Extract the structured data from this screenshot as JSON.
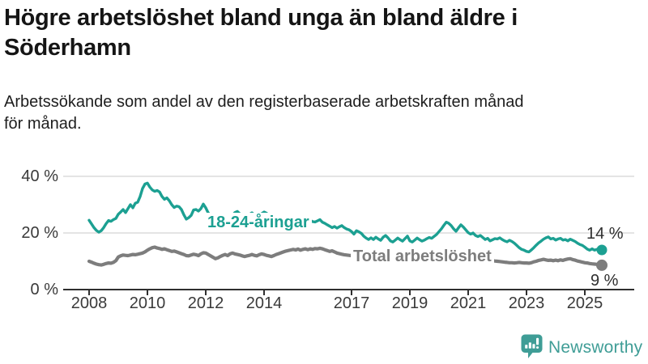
{
  "header": {
    "title": "Högre arbetslöshet bland unga än bland äldre i Söderhamn",
    "subtitle": "Arbetssökande som andel av den registerbaserade arbetskraften månad för månad."
  },
  "colors": {
    "accent_teal": "#1CA092",
    "line_gray": "#7D7D7D",
    "grid": "#DCDCDC",
    "axis": "#2F2F2F",
    "tick_text": "#3a3a3a",
    "logo_teal": "#3F9D96"
  },
  "chart_data": {
    "type": "line",
    "title": "",
    "xlabel": "",
    "ylabel": "",
    "unit": "%",
    "grid": "horizontal",
    "start_year": 2008,
    "points_per_year": 12,
    "x_range": [
      2008,
      2025.67
    ],
    "ylim": [
      0,
      42
    ],
    "x_ticks": [
      2008,
      2010,
      2012,
      2014,
      2017,
      2019,
      2021,
      2023,
      2025
    ],
    "y_ticks": [
      {
        "value": 0,
        "label": "0 %"
      },
      {
        "value": 20,
        "label": "20 %"
      },
      {
        "value": 40,
        "label": "40 %"
      }
    ],
    "series": [
      {
        "name": "18-24-åringar",
        "label": "18-24-åringar",
        "end_label": "14 %",
        "end_value": 14,
        "color": "#1CA092",
        "values": [
          24.5,
          23.2,
          21.9,
          20.9,
          20.3,
          20.8,
          21.9,
          23.3,
          24.4,
          24.1,
          24.7,
          25.1,
          26.6,
          27.4,
          28.3,
          27.2,
          28.6,
          30.0,
          28.9,
          30.5,
          30.9,
          32.9,
          35.7,
          37.3,
          37.6,
          36.2,
          35.2,
          34.7,
          35.0,
          34.5,
          32.9,
          31.9,
          32.4,
          31.4,
          30.0,
          29.0,
          29.5,
          29.3,
          28.3,
          26.4,
          24.9,
          25.4,
          26.2,
          28.1,
          28.3,
          27.7,
          28.6,
          30.2,
          28.9,
          27.1,
          26.2,
          25.4,
          24.8,
          24.3,
          25.0,
          25.8,
          25.3,
          24.8,
          25.4,
          26.3,
          27.2,
          27.6,
          26.8,
          26.1,
          25.4,
          25.9,
          26.6,
          27.1,
          26.4,
          25.8,
          26.2,
          26.8,
          27.4,
          27.0,
          26.3,
          25.6,
          25.1,
          25.5,
          26.1,
          25.8,
          25.2,
          24.7,
          25.1,
          25.6,
          26.0,
          25.6,
          25.0,
          24.4,
          24.0,
          24.3,
          24.8,
          24.5,
          24.0,
          23.9,
          24.3,
          24.7,
          23.8,
          23.4,
          22.9,
          22.4,
          21.9,
          22.3,
          21.7,
          22.2,
          22.6,
          21.9,
          21.4,
          21.1,
          20.5,
          19.6,
          20.8,
          20.4,
          19.9,
          18.9,
          18.2,
          17.7,
          18.3,
          17.7,
          18.5,
          17.9,
          17.4,
          18.5,
          19.1,
          18.3,
          17.2,
          16.8,
          17.5,
          18.2,
          17.6,
          17.1,
          18.0,
          18.9,
          17.2,
          16.8,
          17.5,
          18.2,
          17.6,
          17.1,
          17.5,
          18.0,
          18.4,
          18.1,
          18.8,
          19.5,
          20.5,
          21.5,
          22.7,
          23.8,
          23.4,
          22.6,
          21.5,
          20.6,
          21.8,
          22.9,
          22.1,
          21.1,
          20.1,
          19.6,
          20.0,
          19.1,
          18.7,
          19.1,
          18.4,
          17.7,
          18.1,
          17.2,
          17.6,
          18.0,
          17.9,
          18.3,
          17.7,
          17.2,
          16.9,
          17.4,
          17.0,
          16.4,
          15.6,
          14.8,
          14.2,
          13.9,
          13.5,
          13.3,
          14.0,
          14.8,
          15.7,
          16.5,
          17.1,
          17.8,
          18.3,
          18.6,
          17.9,
          18.1,
          17.5,
          17.9,
          18.1,
          17.5,
          17.7,
          17.2,
          17.8,
          17.4,
          17.0,
          16.4,
          15.9,
          15.6,
          15.0,
          14.3,
          13.9,
          14.4,
          13.9,
          14.2,
          13.8,
          14.0
        ]
      },
      {
        "name": "Total arbetslöshet",
        "label": "Total arbetslöshet",
        "end_label": "9 %",
        "end_value": 9,
        "color": "#7D7D7D",
        "values": [
          10.0,
          9.7,
          9.3,
          9.0,
          8.8,
          8.7,
          8.9,
          9.2,
          9.4,
          9.3,
          9.6,
          10.2,
          11.5,
          11.9,
          12.2,
          12.1,
          12.0,
          12.2,
          12.4,
          12.3,
          12.5,
          12.7,
          12.9,
          13.3,
          13.9,
          14.4,
          14.8,
          15.0,
          14.7,
          14.5,
          14.2,
          14.4,
          14.1,
          13.8,
          13.5,
          13.6,
          13.3,
          13.0,
          12.7,
          12.4,
          12.0,
          11.9,
          12.2,
          12.5,
          12.3,
          12.0,
          12.6,
          13.0,
          12.9,
          12.4,
          11.9,
          11.4,
          10.9,
          11.2,
          11.7,
          12.1,
          12.4,
          12.0,
          12.6,
          12.9,
          12.6,
          12.4,
          12.2,
          11.9,
          11.7,
          11.9,
          12.1,
          12.4,
          12.1,
          11.9,
          12.3,
          12.6,
          12.4,
          12.1,
          11.9,
          11.7,
          12.0,
          12.4,
          12.7,
          13.0,
          13.3,
          13.6,
          13.8,
          14.0,
          14.2,
          14.0,
          14.3,
          13.9,
          14.2,
          14.4,
          14.1,
          14.4,
          14.2,
          14.5,
          14.4,
          14.6,
          14.4,
          14.1,
          13.8,
          13.5,
          13.7,
          13.3,
          12.9,
          12.7,
          12.5,
          12.3,
          12.2,
          12.1,
          12.0,
          11.8,
          11.7,
          11.5,
          11.4,
          11.3,
          11.2,
          11.3,
          11.2,
          11.1,
          11.0,
          11.1,
          11.0,
          10.9,
          10.8,
          10.7,
          10.6,
          10.5,
          10.6,
          10.7,
          10.6,
          10.5,
          10.4,
          10.5,
          10.6,
          10.5,
          10.4,
          10.3,
          10.4,
          10.5,
          10.6,
          10.7,
          10.8,
          10.9,
          11.0,
          11.2,
          11.5,
          11.8,
          12.2,
          12.5,
          12.4,
          12.2,
          12.0,
          11.9,
          12.0,
          11.8,
          11.6,
          11.4,
          11.3,
          11.1,
          11.0,
          10.9,
          10.8,
          10.7,
          10.6,
          10.5,
          10.4,
          10.3,
          10.2,
          10.1,
          10.0,
          9.9,
          9.8,
          9.7,
          9.6,
          9.5,
          9.5,
          9.4,
          9.5,
          9.6,
          9.5,
          9.4,
          9.4,
          9.3,
          9.5,
          9.8,
          10.0,
          10.3,
          10.5,
          10.7,
          10.5,
          10.3,
          10.4,
          10.2,
          10.4,
          10.2,
          10.5,
          10.3,
          10.6,
          10.8,
          10.9,
          10.6,
          10.4,
          10.1,
          9.9,
          9.7,
          9.5,
          9.4,
          9.2,
          9.1,
          9.0,
          8.9,
          8.7,
          8.6
        ]
      }
    ]
  },
  "footer": {
    "brand": "Newsworthy"
  }
}
